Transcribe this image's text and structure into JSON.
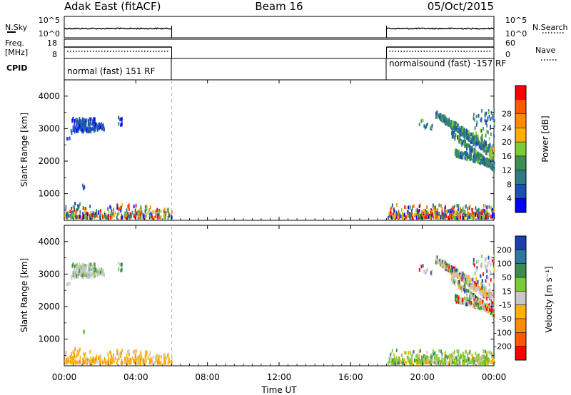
{
  "header": {
    "station": "Adak East (fitACF)",
    "beam": "Beam 16",
    "date": "05/Oct/2015"
  },
  "sky_panel": {
    "left_label": "N.Sky",
    "right_label": "N.Search",
    "left_ticks": [
      "10^5",
      "10^0"
    ],
    "right_ticks": [
      "10^5",
      "10^0"
    ]
  },
  "freq_panel": {
    "left_label_1": "Freq.",
    "left_label_2": "[MHz]",
    "right_label": "Nave",
    "left_ticks": [
      "18",
      "8"
    ],
    "right_ticks": [
      "60",
      "0"
    ]
  },
  "cpid_panel": {
    "label": "CPID",
    "segments": [
      {
        "start_hour": 0,
        "end_hour": 6,
        "text": "normal (fast) 151 RF"
      },
      {
        "start_hour": 18,
        "end_hour": 24,
        "text": "normalsound (fast) -157 RF"
      }
    ]
  },
  "x_axis": {
    "label": "Time UT",
    "range_hours": [
      0,
      24
    ],
    "ticks": [
      {
        "hour": 0,
        "label": "00:00"
      },
      {
        "hour": 4,
        "label": "04:00"
      },
      {
        "hour": 8,
        "label": "08:00"
      },
      {
        "hour": 12,
        "label": "12:00"
      },
      {
        "hour": 16,
        "label": "16:00"
      },
      {
        "hour": 20,
        "label": "20:00"
      },
      {
        "hour": 24,
        "label": "00:00"
      }
    ]
  },
  "chart_data": [
    {
      "type": "heatmap",
      "panel": "power",
      "ylabel": "Slant Range [km]",
      "ylim": [
        180,
        4500
      ],
      "yticks": [
        1000,
        2000,
        3000,
        4000
      ],
      "colorbar": {
        "label": "Power [dB]",
        "ticks": [
          "4",
          "8",
          "12",
          "16",
          "20",
          "24",
          "28"
        ],
        "colors": [
          "#0000ff",
          "#1e4fb4",
          "#2f7a86",
          "#3e8d55",
          "#7acc33",
          "#ffb000",
          "#ff8c00",
          "#ff5a00",
          "#ff0000"
        ]
      },
      "data_gap_hours": [
        6,
        18
      ],
      "regions": [
        {
          "t_start": 0.1,
          "t_end": 1.7,
          "r_start": 2850,
          "r_end": 3250,
          "dominant": "low power (4-8 dB)"
        },
        {
          "t_start": 20.7,
          "t_end": 24.0,
          "r_start": 1500,
          "r_end": 3500,
          "dominant": "8-16 dB, up to ~24 dB near 23:50"
        },
        {
          "t_start": 0.0,
          "t_end": 6.0,
          "r_start": 180,
          "r_end": 650,
          "dominant": "mixed ground scatter"
        },
        {
          "t_start": 18.0,
          "t_end": 24.0,
          "r_start": 180,
          "r_end": 650,
          "dominant": "mixed ground scatter"
        }
      ]
    },
    {
      "type": "heatmap",
      "panel": "velocity",
      "ylabel": "Slant Range [km]",
      "ylim": [
        180,
        4500
      ],
      "yticks": [
        1000,
        2000,
        3000,
        4000
      ],
      "colorbar": {
        "label": "Velocity [m s⁻¹]",
        "ticks": [
          "200",
          "100",
          "50",
          "15",
          "-15",
          "-50",
          "-100",
          "-200"
        ],
        "colors": [
          "#1c3fb0",
          "#2e78a0",
          "#3e8a50",
          "#7acc33",
          "#c8c8c8",
          "#ffb000",
          "#ff8c00",
          "#ff5a00",
          "#ff0000"
        ]
      },
      "data_gap_hours": [
        6,
        18
      ],
      "regions": [
        {
          "t_start": 0.1,
          "t_end": 1.7,
          "r_start": 2850,
          "r_end": 3250,
          "dominant": "near zero (-15 to 15)"
        },
        {
          "t_start": 20.7,
          "t_end": 24.0,
          "r_start": 1500,
          "r_end": 3500,
          "dominant": "near zero with scattered positive/negative"
        },
        {
          "t_start": 0.0,
          "t_end": 6.0,
          "r_start": 180,
          "r_end": 650,
          "dominant": "-15 to -50"
        },
        {
          "t_start": 18.0,
          "t_end": 24.0,
          "r_start": 180,
          "r_end": 650,
          "dominant": "15 to 50"
        }
      ]
    }
  ],
  "colors": {
    "axis": "#000000",
    "gap_line": "#bbbbbb",
    "power_low": "#1e4fb4",
    "power_mid": "#3e8d55",
    "velocity_zero": "#c8c8c8"
  }
}
